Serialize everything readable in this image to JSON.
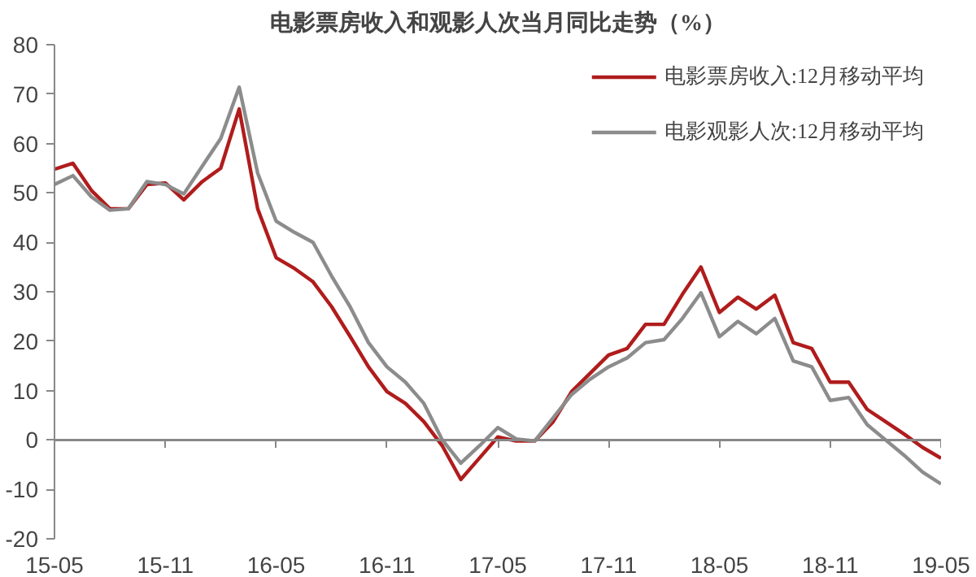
{
  "chart_data": {
    "type": "line",
    "title": "电影票房收入和观影人次当月同比走势（%）",
    "categories": [
      "15-05",
      null,
      null,
      null,
      null,
      null,
      "15-11",
      null,
      null,
      null,
      null,
      null,
      "16-05",
      null,
      null,
      null,
      null,
      null,
      "16-11",
      null,
      null,
      null,
      null,
      null,
      "17-05",
      null,
      null,
      null,
      null,
      null,
      "17-11",
      null,
      null,
      null,
      null,
      null,
      "18-05",
      null,
      null,
      null,
      null,
      null,
      "18-11",
      null,
      null,
      null,
      null,
      null,
      "19-05"
    ],
    "series": [
      {
        "name": "电影票房收入:12月移动平均",
        "color": "#b01c1c",
        "values": [
          54.8,
          56,
          50.5,
          46.8,
          46.8,
          51.7,
          52,
          48.6,
          52.3,
          55,
          67,
          46.8,
          36.9,
          34.7,
          32,
          27,
          21,
          14.8,
          9.8,
          7.4,
          3.7,
          -1.2,
          -8,
          -3.7,
          0.6,
          -0.2,
          -0.2,
          3.7,
          9.8,
          13.5,
          17.2,
          18.5,
          23.4,
          23.4,
          29.5,
          35,
          25.8,
          28.9,
          26.5,
          29.3,
          19.7,
          18.5,
          11.7,
          11.7,
          6.2,
          3.7,
          1.2,
          -1.5,
          -3.7
        ]
      },
      {
        "name": "电影观影人次:12月移动平均",
        "color": "#8c8c8c",
        "values": [
          51.7,
          53.5,
          49.2,
          46.5,
          46.8,
          52.3,
          51.7,
          49.8,
          55.4,
          61,
          71.4,
          54,
          44.3,
          42,
          40,
          33.2,
          27,
          19.7,
          14.8,
          11.7,
          7.4,
          0,
          -4.7,
          -1.2,
          2.5,
          0.2,
          -0.2,
          4.5,
          9.2,
          12.3,
          14.8,
          16.6,
          19.7,
          20.3,
          24.6,
          29.8,
          20.9,
          24,
          21.5,
          24.6,
          16,
          14.8,
          8,
          8.6,
          3.1,
          0,
          -3.1,
          -6.5,
          -8.9
        ]
      }
    ],
    "ylim": [
      -20,
      80
    ],
    "yticks": [
      -20,
      -10,
      0,
      10,
      20,
      30,
      40,
      50,
      60,
      70,
      80
    ],
    "ref_lines": [
      {
        "axis": "y",
        "value": 0,
        "color": "#888888",
        "line_style": "solid"
      }
    ],
    "grid": false,
    "legend": "top right",
    "line_style": "solid",
    "marker": "none"
  }
}
